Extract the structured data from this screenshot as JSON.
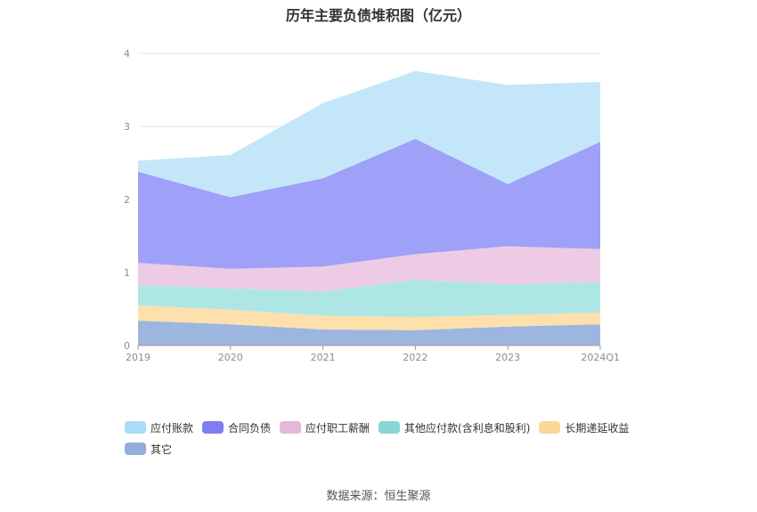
{
  "chart_data": {
    "type": "area",
    "stacked": true,
    "title": "历年主要负债堆积图（亿元）",
    "x": [
      "2019",
      "2020",
      "2021",
      "2022",
      "2023",
      "2024Q1"
    ],
    "ylim": [
      0,
      4
    ],
    "yticks": [
      "0",
      "1",
      "2",
      "3",
      "4"
    ],
    "grid": true,
    "legend_position": "bottom",
    "series": [
      {
        "name": "其它",
        "color": "#9db6e0",
        "values": [
          0.34,
          0.29,
          0.22,
          0.21,
          0.26,
          0.29
        ]
      },
      {
        "name": "长期递延收益",
        "color": "#fde0ab",
        "values": [
          0.21,
          0.2,
          0.19,
          0.18,
          0.16,
          0.16
        ]
      },
      {
        "name": "其他应付款(含利息和股利)",
        "color": "#aee6e6",
        "values": [
          0.28,
          0.29,
          0.33,
          0.51,
          0.42,
          0.42
        ]
      },
      {
        "name": "应付职工薪酬",
        "color": "#eecbe4",
        "values": [
          0.3,
          0.27,
          0.34,
          0.35,
          0.52,
          0.45
        ]
      },
      {
        "name": "合同负债",
        "color": "#9fa0f8",
        "values": [
          1.25,
          0.98,
          1.21,
          1.58,
          0.85,
          1.47
        ]
      },
      {
        "name": "应付账款",
        "color": "#c3e7f9",
        "values": [
          0.15,
          0.58,
          1.03,
          0.93,
          1.36,
          0.82
        ]
      }
    ]
  },
  "legend": [
    {
      "label": "应付账款",
      "color": "#a9dcf8"
    },
    {
      "label": "合同负债",
      "color": "#7d7ef0"
    },
    {
      "label": "应付职工薪酬",
      "color": "#e6b8d8"
    },
    {
      "label": "其他应付款(含利息和股利)",
      "color": "#86d6d6"
    },
    {
      "label": "长期递延收益",
      "color": "#fcd597"
    },
    {
      "label": "其它",
      "color": "#92afdc"
    }
  ],
  "source": "数据来源：恒生聚源"
}
